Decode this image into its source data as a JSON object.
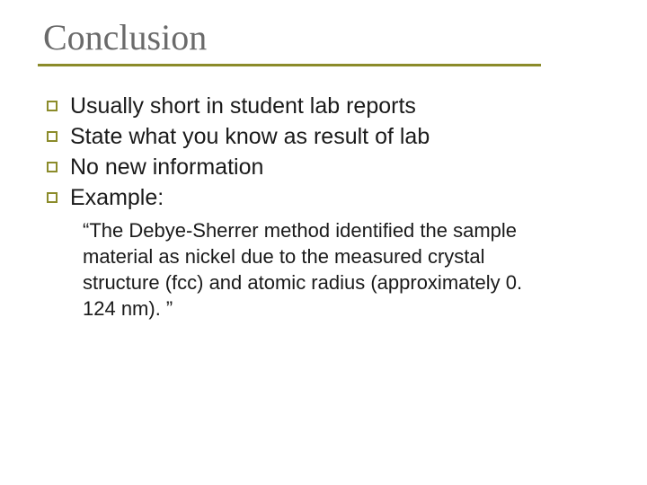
{
  "title": {
    "text": "Conclusion",
    "fontsize": 40,
    "color": "#6a6a6a"
  },
  "underline_color": "#8b8b2a",
  "bullet": {
    "border_color": "#8b8b2a",
    "size": 12
  },
  "body_fontsize": 25,
  "sub_fontsize": 22,
  "text_color": "#1a1a1a",
  "bullets": [
    "Usually short in student lab reports",
    "State what you know as result of lab",
    "No new information",
    "Example:"
  ],
  "example_quote": "“The Debye-Sherrer method identified the sample material as nickel due to the measured crystal structure (fcc) and atomic radius (approximately 0. 124 nm). ”"
}
